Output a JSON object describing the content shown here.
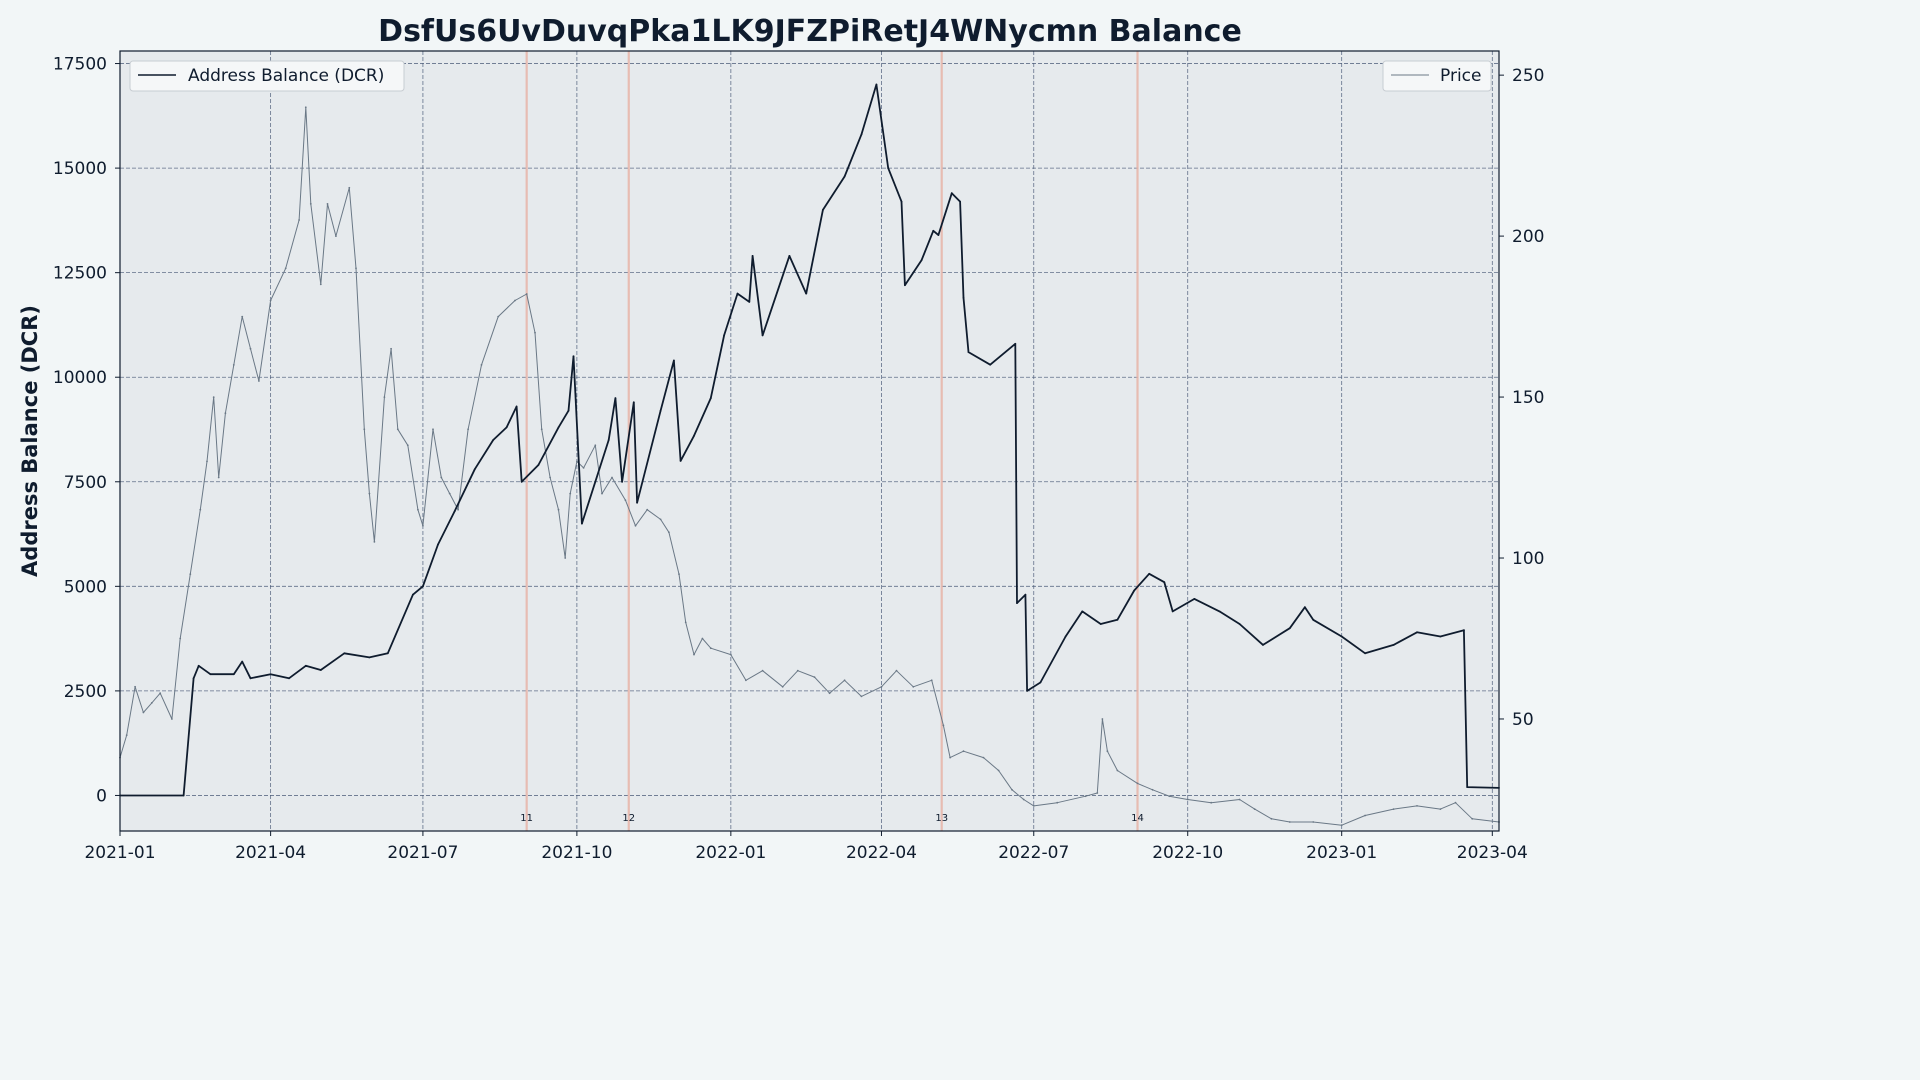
{
  "chart_data": {
    "type": "line",
    "title": "DsfUs6UvDuvqPka1LK9JFZPiRetJ4WNycmn Balance",
    "ylabel": "Address Balance (DCR)",
    "y2label": "",
    "xlabel": "",
    "xlim": [
      "2021-01-01",
      "2023-04-05"
    ],
    "ylim": [
      -850,
      17800
    ],
    "y2lim": [
      15.2,
      257.5
    ],
    "x_ticks": [
      "2021-01",
      "2021-04",
      "2021-07",
      "2021-10",
      "2022-01",
      "2022-04",
      "2022-07",
      "2022-10",
      "2023-01",
      "2023-04"
    ],
    "y_ticks": [
      0,
      2500,
      5000,
      7500,
      10000,
      12500,
      15000,
      17500
    ],
    "y2_ticks": [
      50,
      100,
      150,
      200,
      250
    ],
    "grid": true,
    "legend": [
      {
        "label": "Address Balance (DCR)",
        "position": "top-left"
      },
      {
        "label": "Price",
        "position": "top-right"
      }
    ],
    "colors": {
      "balance": "#0f1c2e",
      "price": "#6a7886",
      "event": "#e8b4a8",
      "plot_bg": "#e6eaed",
      "figure_bg": "#f2f6f7",
      "grid": "#4a5a78"
    },
    "events": [
      {
        "date": "2021-09-01",
        "label": "11"
      },
      {
        "date": "2021-11-01",
        "label": "12"
      },
      {
        "date": "2022-05-07",
        "label": "13"
      },
      {
        "date": "2022-09-01",
        "label": "14"
      }
    ],
    "series": [
      {
        "name": "Address Balance (DCR)",
        "axis": "left",
        "points": [
          [
            "2021-01-01",
            0
          ],
          [
            "2021-02-08",
            0
          ],
          [
            "2021-02-14",
            2800
          ],
          [
            "2021-02-17",
            3100
          ],
          [
            "2021-02-24",
            2900
          ],
          [
            "2021-03-10",
            2900
          ],
          [
            "2021-03-15",
            3200
          ],
          [
            "2021-03-20",
            2800
          ],
          [
            "2021-04-01",
            2900
          ],
          [
            "2021-04-12",
            2800
          ],
          [
            "2021-04-22",
            3100
          ],
          [
            "2021-05-01",
            3000
          ],
          [
            "2021-05-15",
            3400
          ],
          [
            "2021-05-30",
            3300
          ],
          [
            "2021-06-10",
            3400
          ],
          [
            "2021-06-25",
            4800
          ],
          [
            "2021-07-01",
            5000
          ],
          [
            "2021-07-10",
            6000
          ],
          [
            "2021-07-20",
            6800
          ],
          [
            "2021-08-01",
            7800
          ],
          [
            "2021-08-12",
            8500
          ],
          [
            "2021-08-20",
            8800
          ],
          [
            "2021-08-26",
            9300
          ],
          [
            "2021-08-29",
            7500
          ],
          [
            "2021-09-08",
            7900
          ],
          [
            "2021-09-20",
            8800
          ],
          [
            "2021-09-26",
            9200
          ],
          [
            "2021-09-29",
            10500
          ],
          [
            "2021-10-04",
            6500
          ],
          [
            "2021-10-12",
            7500
          ],
          [
            "2021-10-20",
            8500
          ],
          [
            "2021-10-24",
            9500
          ],
          [
            "2021-10-28",
            7500
          ],
          [
            "2021-11-04",
            9400
          ],
          [
            "2021-11-06",
            7000
          ],
          [
            "2021-11-20",
            9200
          ],
          [
            "2021-11-28",
            10400
          ],
          [
            "2021-12-02",
            8000
          ],
          [
            "2021-12-10",
            8600
          ],
          [
            "2021-12-20",
            9500
          ],
          [
            "2021-12-28",
            11000
          ],
          [
            "2022-01-05",
            12000
          ],
          [
            "2022-01-12",
            11800
          ],
          [
            "2022-01-14",
            12900
          ],
          [
            "2022-01-20",
            11000
          ],
          [
            "2022-02-05",
            12900
          ],
          [
            "2022-02-15",
            12000
          ],
          [
            "2022-02-25",
            14000
          ],
          [
            "2022-03-10",
            14800
          ],
          [
            "2022-03-20",
            15800
          ],
          [
            "2022-03-29",
            17000
          ],
          [
            "2022-04-05",
            15000
          ],
          [
            "2022-04-13",
            14200
          ],
          [
            "2022-04-15",
            12200
          ],
          [
            "2022-04-25",
            12800
          ],
          [
            "2022-05-02",
            13500
          ],
          [
            "2022-05-05",
            13400
          ],
          [
            "2022-05-13",
            14400
          ],
          [
            "2022-05-18",
            14200
          ],
          [
            "2022-05-20",
            11900
          ],
          [
            "2022-05-23",
            10600
          ],
          [
            "2022-06-05",
            10300
          ],
          [
            "2022-06-20",
            10800
          ],
          [
            "2022-06-21",
            4600
          ],
          [
            "2022-06-26",
            4800
          ],
          [
            "2022-06-27",
            2500
          ],
          [
            "2022-07-05",
            2700
          ],
          [
            "2022-07-20",
            3800
          ],
          [
            "2022-07-30",
            4400
          ],
          [
            "2022-08-10",
            4100
          ],
          [
            "2022-08-20",
            4200
          ],
          [
            "2022-08-30",
            4900
          ],
          [
            "2022-09-08",
            5300
          ],
          [
            "2022-09-17",
            5100
          ],
          [
            "2022-09-22",
            4400
          ],
          [
            "2022-10-05",
            4700
          ],
          [
            "2022-10-20",
            4400
          ],
          [
            "2022-11-01",
            4100
          ],
          [
            "2022-11-15",
            3600
          ],
          [
            "2022-12-01",
            4000
          ],
          [
            "2022-12-10",
            4500
          ],
          [
            "2022-12-15",
            4200
          ],
          [
            "2023-01-01",
            3800
          ],
          [
            "2023-01-15",
            3400
          ],
          [
            "2023-02-01",
            3600
          ],
          [
            "2023-02-15",
            3900
          ],
          [
            "2023-03-01",
            3800
          ],
          [
            "2023-03-15",
            3950
          ],
          [
            "2023-03-17",
            200
          ],
          [
            "2023-04-05",
            180
          ]
        ]
      },
      {
        "name": "Price",
        "axis": "right",
        "points": [
          [
            "2021-01-01",
            38
          ],
          [
            "2021-01-05",
            45
          ],
          [
            "2021-01-10",
            60
          ],
          [
            "2021-01-15",
            52
          ],
          [
            "2021-01-20",
            55
          ],
          [
            "2021-01-25",
            58
          ],
          [
            "2021-02-01",
            50
          ],
          [
            "2021-02-06",
            75
          ],
          [
            "2021-02-12",
            95
          ],
          [
            "2021-02-18",
            115
          ],
          [
            "2021-02-22",
            130
          ],
          [
            "2021-02-26",
            150
          ],
          [
            "2021-03-01",
            125
          ],
          [
            "2021-03-05",
            145
          ],
          [
            "2021-03-10",
            160
          ],
          [
            "2021-03-15",
            175
          ],
          [
            "2021-03-20",
            165
          ],
          [
            "2021-03-25",
            155
          ],
          [
            "2021-04-01",
            180
          ],
          [
            "2021-04-10",
            190
          ],
          [
            "2021-04-18",
            205
          ],
          [
            "2021-04-22",
            240
          ],
          [
            "2021-04-25",
            210
          ],
          [
            "2021-05-01",
            185
          ],
          [
            "2021-05-05",
            210
          ],
          [
            "2021-05-10",
            200
          ],
          [
            "2021-05-18",
            215
          ],
          [
            "2021-05-22",
            190
          ],
          [
            "2021-05-27",
            140
          ],
          [
            "2021-05-30",
            120
          ],
          [
            "2021-06-02",
            105
          ],
          [
            "2021-06-08",
            150
          ],
          [
            "2021-06-12",
            165
          ],
          [
            "2021-06-16",
            140
          ],
          [
            "2021-06-22",
            135
          ],
          [
            "2021-06-28",
            115
          ],
          [
            "2021-07-01",
            110
          ],
          [
            "2021-07-07",
            140
          ],
          [
            "2021-07-12",
            125
          ],
          [
            "2021-07-17",
            120
          ],
          [
            "2021-07-22",
            115
          ],
          [
            "2021-07-28",
            140
          ],
          [
            "2021-08-05",
            160
          ],
          [
            "2021-08-15",
            175
          ],
          [
            "2021-08-25",
            180
          ],
          [
            "2021-09-01",
            182
          ],
          [
            "2021-09-06",
            170
          ],
          [
            "2021-09-10",
            140
          ],
          [
            "2021-09-15",
            125
          ],
          [
            "2021-09-20",
            115
          ],
          [
            "2021-09-24",
            100
          ],
          [
            "2021-09-27",
            120
          ],
          [
            "2021-10-01",
            130
          ],
          [
            "2021-10-05",
            128
          ],
          [
            "2021-10-12",
            135
          ],
          [
            "2021-10-16",
            120
          ],
          [
            "2021-10-22",
            125
          ],
          [
            "2021-10-30",
            118
          ],
          [
            "2021-11-05",
            110
          ],
          [
            "2021-11-12",
            115
          ],
          [
            "2021-11-20",
            112
          ],
          [
            "2021-11-25",
            108
          ],
          [
            "2021-12-01",
            95
          ],
          [
            "2021-12-05",
            80
          ],
          [
            "2021-12-10",
            70
          ],
          [
            "2021-12-15",
            75
          ],
          [
            "2021-12-20",
            72
          ],
          [
            "2022-01-01",
            70
          ],
          [
            "2022-01-10",
            62
          ],
          [
            "2022-01-20",
            65
          ],
          [
            "2022-02-01",
            60
          ],
          [
            "2022-02-10",
            65
          ],
          [
            "2022-02-20",
            63
          ],
          [
            "2022-03-01",
            58
          ],
          [
            "2022-03-10",
            62
          ],
          [
            "2022-03-20",
            57
          ],
          [
            "2022-04-01",
            60
          ],
          [
            "2022-04-10",
            65
          ],
          [
            "2022-04-20",
            60
          ],
          [
            "2022-05-01",
            62
          ],
          [
            "2022-05-08",
            48
          ],
          [
            "2022-05-12",
            38
          ],
          [
            "2022-05-20",
            40
          ],
          [
            "2022-06-01",
            38
          ],
          [
            "2022-06-10",
            34
          ],
          [
            "2022-06-18",
            28
          ],
          [
            "2022-06-25",
            25
          ],
          [
            "2022-07-01",
            23
          ],
          [
            "2022-07-15",
            24
          ],
          [
            "2022-08-01",
            26
          ],
          [
            "2022-08-08",
            27
          ],
          [
            "2022-08-11",
            50
          ],
          [
            "2022-08-14",
            40
          ],
          [
            "2022-08-20",
            34
          ],
          [
            "2022-09-01",
            30
          ],
          [
            "2022-09-10",
            28
          ],
          [
            "2022-09-20",
            26
          ],
          [
            "2022-10-01",
            25
          ],
          [
            "2022-10-15",
            24
          ],
          [
            "2022-11-01",
            25
          ],
          [
            "2022-11-10",
            22
          ],
          [
            "2022-11-20",
            19
          ],
          [
            "2022-12-01",
            18
          ],
          [
            "2022-12-15",
            18
          ],
          [
            "2023-01-01",
            17
          ],
          [
            "2023-01-15",
            20
          ],
          [
            "2023-02-01",
            22
          ],
          [
            "2023-02-15",
            23
          ],
          [
            "2023-03-01",
            22
          ],
          [
            "2023-03-10",
            24
          ],
          [
            "2023-03-20",
            19
          ],
          [
            "2023-04-05",
            18
          ]
        ]
      }
    ]
  }
}
